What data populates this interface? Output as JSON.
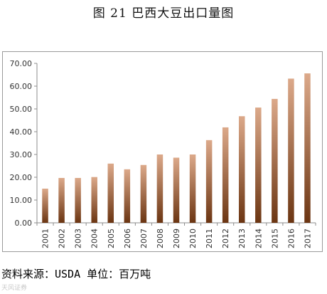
{
  "title": "图 21  巴西大豆出口量图",
  "source_note": "资料来源：USDA  单位：百万吨",
  "watermark": "天风证券",
  "colors": {
    "bar_top": "#dca98a",
    "bar_bottom": "#6b3512",
    "axis": "#8c8c8c",
    "frame": "#9a9a9a"
  },
  "chart_data": {
    "type": "bar",
    "categories": [
      "2001",
      "2002",
      "2003",
      "2004",
      "2005",
      "2006",
      "2007",
      "2008",
      "2009",
      "2010",
      "2011",
      "2012",
      "2013",
      "2014",
      "2015",
      "2016",
      "2017"
    ],
    "values": [
      15.0,
      19.7,
      19.7,
      20.1,
      26.0,
      23.5,
      25.4,
      30.0,
      28.6,
      30.0,
      36.3,
      41.9,
      46.8,
      50.6,
      54.4,
      63.3,
      65.6
    ],
    "ylim": [
      0,
      70
    ],
    "yticks": [
      "0.00",
      "10.00",
      "20.00",
      "30.00",
      "40.00",
      "50.00",
      "60.00",
      "70.00"
    ],
    "xlabel": "",
    "ylabel": "",
    "grid": false,
    "legend": "none"
  }
}
